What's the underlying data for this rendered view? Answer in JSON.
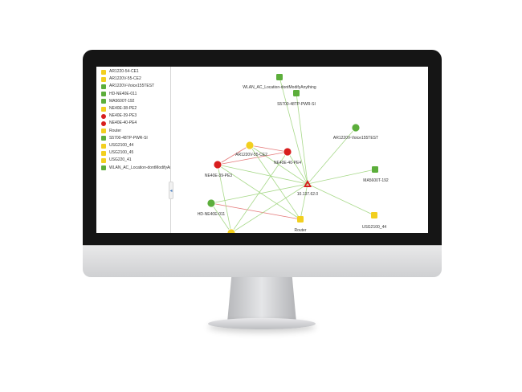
{
  "sidebar": {
    "items": [
      {
        "label": "AR1220-54-CE1",
        "status": "yellow"
      },
      {
        "label": "AR1220V-55-CE2",
        "status": "yellow"
      },
      {
        "label": "AR1220V-Voice155TEST",
        "status": "green"
      },
      {
        "label": "HD-NE40E-011",
        "status": "green"
      },
      {
        "label": "MA5600T-192",
        "status": "green"
      },
      {
        "label": "NE40E-38-PE2",
        "status": "yellow"
      },
      {
        "label": "NE40E-39-PE3",
        "status": "red"
      },
      {
        "label": "NE40E-40-PE4",
        "status": "red"
      },
      {
        "label": "Router",
        "status": "yellow"
      },
      {
        "label": "S5700-48TP-PWR-SI",
        "status": "green"
      },
      {
        "label": "USG2100_44",
        "status": "yellow"
      },
      {
        "label": "USG2100_45",
        "status": "yellow"
      },
      {
        "label": "USG220_41",
        "status": "yellow"
      },
      {
        "label": "WLAN_AC_Location-dontModifyAnything",
        "status": "green"
      }
    ],
    "collapse_glyph": "◂"
  },
  "topology": {
    "colors": {
      "green": "#5cae3b",
      "yellow": "#f2cf1f",
      "red": "#d81e1e",
      "link_green": "#a8d98a",
      "link_red": "#e57b7b"
    },
    "nodes": [
      {
        "id": "wlan",
        "label": "WLAN_AC_Location-dontModifyAnything",
        "status": "green",
        "icon": "ac-controller-icon"
      },
      {
        "id": "s5700",
        "label": "S5700-48TP-PWR-SI",
        "status": "green",
        "icon": "switch-icon"
      },
      {
        "id": "ar1220voice",
        "label": "AR1220V-Voice155TEST",
        "status": "green",
        "icon": "router-icon"
      },
      {
        "id": "ar1220v55",
        "label": "AR1220V-55-CE2",
        "status": "yellow",
        "icon": "router-icon"
      },
      {
        "id": "ne40e39",
        "label": "NE40E-39-PE3",
        "status": "red",
        "icon": "router-icon"
      },
      {
        "id": "ne40e40",
        "label": "NE40E-40-PE4",
        "status": "red",
        "icon": "router-icon"
      },
      {
        "id": "center",
        "label": "10.137.62.0",
        "status": "red",
        "icon": "network-hub-icon"
      },
      {
        "id": "ma5600",
        "label": "MA5600T-192",
        "status": "green",
        "icon": "olt-icon"
      },
      {
        "id": "hdne40e",
        "label": "HD-NE40E-011",
        "status": "green",
        "icon": "router-icon"
      },
      {
        "id": "router",
        "label": "Router",
        "status": "yellow",
        "icon": "server-icon"
      },
      {
        "id": "usg2100_44",
        "label": "USG2100_44",
        "status": "yellow",
        "icon": "firewall-icon"
      },
      {
        "id": "partial_yellow",
        "label": "",
        "status": "yellow",
        "icon": "router-icon"
      }
    ]
  }
}
